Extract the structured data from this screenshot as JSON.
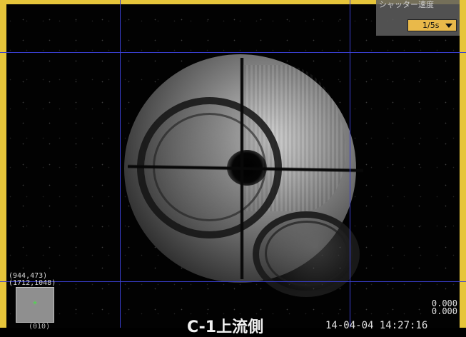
{
  "shutter": {
    "label": "シャッター速度",
    "selected": "1/5s"
  },
  "overlay": {
    "coord_primary": "(944,473)",
    "coord_secondary": "(1712,1048)",
    "thumb_marker": "+",
    "readout_top": "0.000",
    "readout_bottom": "0.000",
    "caption": "C-1上流側",
    "timestamp": "14-04-04 14:27:16",
    "bottom_left_text": "(010)"
  },
  "colors": {
    "frame_border": "#e6c53a",
    "grid_line": "#3a3fd0",
    "dropdown_bg": "#e9b94a",
    "marker": "#3cf03c"
  }
}
